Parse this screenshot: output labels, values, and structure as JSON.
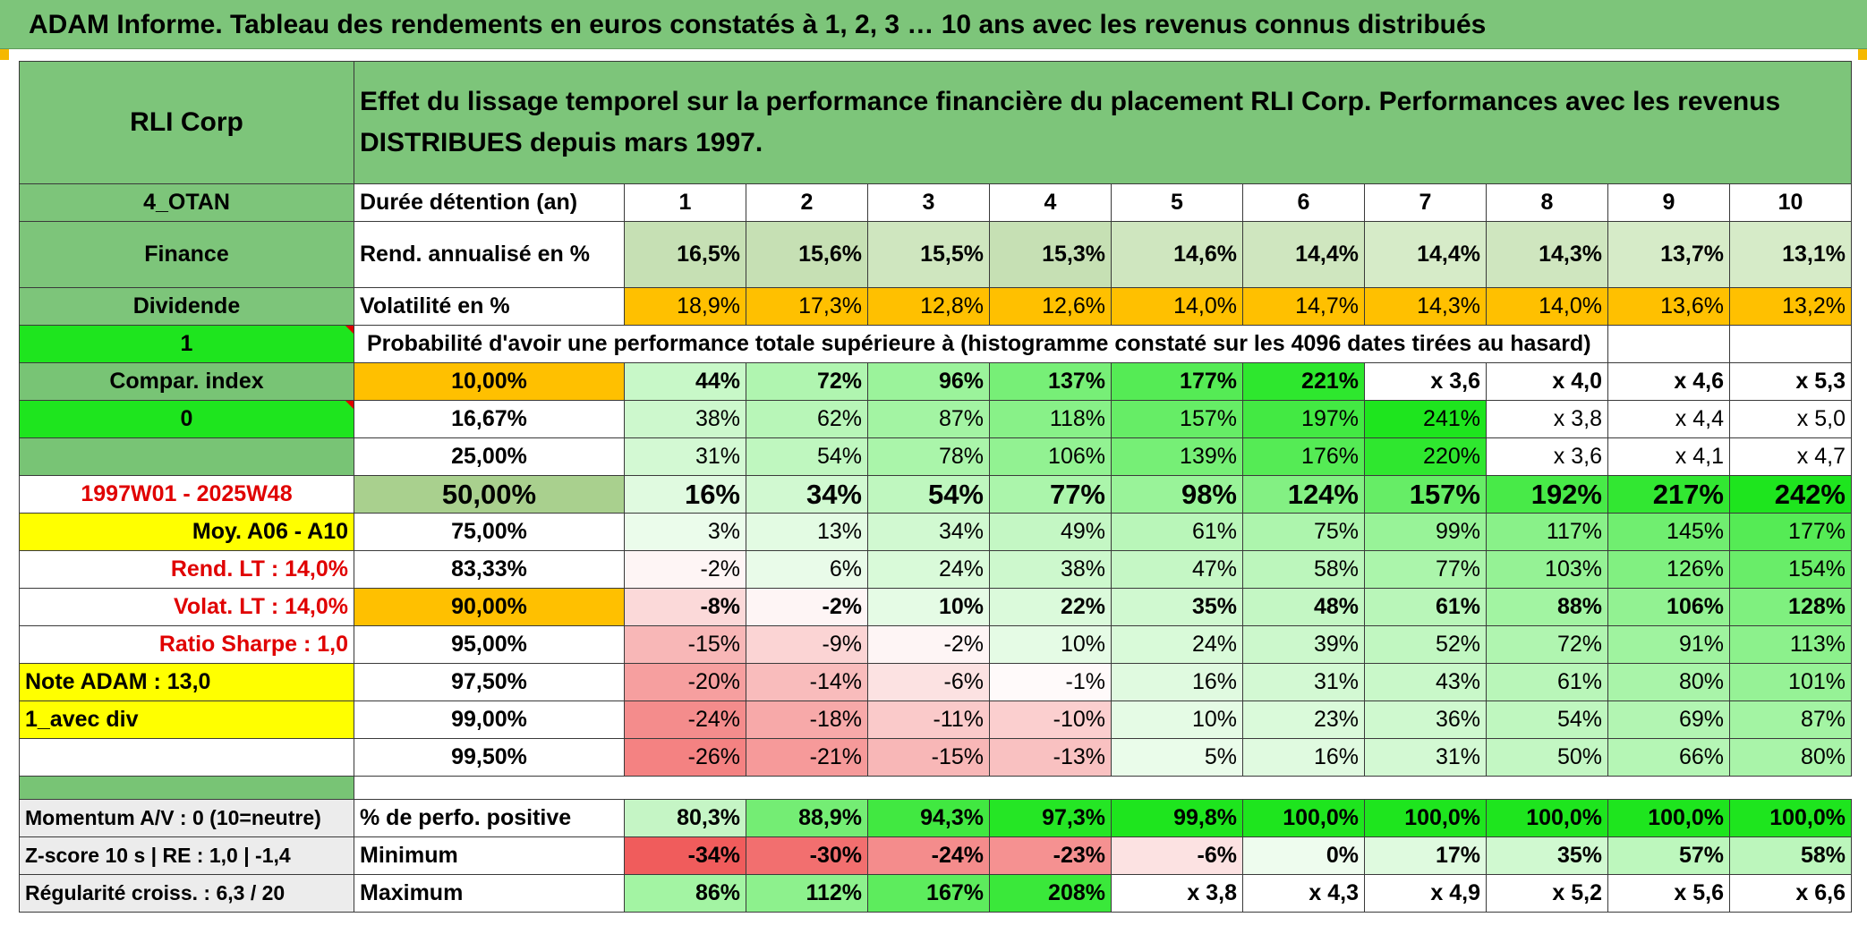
{
  "title": "ADAM Informe. Tableau des rendements en euros constatés à 1, 2, 3 … 10 ans avec les revenus connus distribués",
  "colors": {
    "header_green": "#7dc57a",
    "bright_green": "#1ee51e",
    "orange": "#ffc000",
    "yellow": "#ffff00",
    "red_text": "#e00000"
  },
  "header": {
    "name": "RLI Corp",
    "description": "Effet du lissage temporel sur la performance financière du placement RLI Corp. Performances avec les revenus DISTRIBUES depuis mars 1997."
  },
  "sidebar": {
    "code": "4_OTAN",
    "sector": "Finance",
    "type": "Dividende",
    "toggle_1": "1",
    "compar_index": "Compar. index",
    "toggle_0": "0",
    "empty": "",
    "period": "1997W01 - 2025W48",
    "moy": "Moy. A06 - A10",
    "rend_lt": "Rend. LT :   14,0%",
    "volat_lt": "Volat. LT :   14,0%",
    "sharpe": "Ratio Sharpe :    1,0",
    "note": "Note ADAM : 13,0",
    "div": "1_avec div",
    "blank": ""
  },
  "durations": {
    "label": "Durée détention (an)",
    "values": [
      "1",
      "2",
      "3",
      "4",
      "5",
      "6",
      "7",
      "8",
      "9",
      "10"
    ]
  },
  "rend": {
    "label": "Rend. annualisé en %",
    "values": [
      "16,5%",
      "15,6%",
      "15,5%",
      "15,3%",
      "14,6%",
      "14,4%",
      "14,4%",
      "14,3%",
      "13,7%",
      "13,1%"
    ]
  },
  "vol": {
    "label": "Volatilité en %",
    "values": [
      "18,9%",
      "17,3%",
      "12,8%",
      "12,6%",
      "14,0%",
      "14,7%",
      "14,3%",
      "14,0%",
      "13,6%",
      "13,2%"
    ]
  },
  "proba_title": "Probabilité d'avoir une performance totale supérieure à (histogramme constaté sur les 4096 dates tirées au hasard)",
  "prob_rows": [
    {
      "pct": "10,00%",
      "values": [
        "44%",
        "72%",
        "96%",
        "137%",
        "177%",
        "221%",
        "x 3,6",
        "x 4,0",
        "x 4,6",
        "x 5,3"
      ]
    },
    {
      "pct": "16,67%",
      "values": [
        "38%",
        "62%",
        "87%",
        "118%",
        "157%",
        "197%",
        "241%",
        "x 3,8",
        "x 4,4",
        "x 5,0"
      ]
    },
    {
      "pct": "25,00%",
      "values": [
        "31%",
        "54%",
        "78%",
        "106%",
        "139%",
        "176%",
        "220%",
        "x 3,6",
        "x 4,1",
        "x 4,7"
      ]
    },
    {
      "pct": "50,00%",
      "values": [
        "16%",
        "34%",
        "54%",
        "77%",
        "98%",
        "124%",
        "157%",
        "192%",
        "217%",
        "242%"
      ]
    },
    {
      "pct": "75,00%",
      "values": [
        "3%",
        "13%",
        "34%",
        "49%",
        "61%",
        "75%",
        "99%",
        "117%",
        "145%",
        "177%"
      ]
    },
    {
      "pct": "83,33%",
      "values": [
        "-2%",
        "6%",
        "24%",
        "38%",
        "47%",
        "58%",
        "77%",
        "103%",
        "126%",
        "154%"
      ]
    },
    {
      "pct": "90,00%",
      "values": [
        "-8%",
        "-2%",
        "10%",
        "22%",
        "35%",
        "48%",
        "61%",
        "88%",
        "106%",
        "128%"
      ]
    },
    {
      "pct": "95,00%",
      "values": [
        "-15%",
        "-9%",
        "-2%",
        "10%",
        "24%",
        "39%",
        "52%",
        "72%",
        "91%",
        "113%"
      ]
    },
    {
      "pct": "97,50%",
      "values": [
        "-20%",
        "-14%",
        "-6%",
        "-1%",
        "16%",
        "31%",
        "43%",
        "61%",
        "80%",
        "101%"
      ]
    },
    {
      "pct": "99,00%",
      "values": [
        "-24%",
        "-18%",
        "-11%",
        "-10%",
        "10%",
        "23%",
        "36%",
        "54%",
        "69%",
        "87%"
      ]
    },
    {
      "pct": "99,50%",
      "values": [
        "-26%",
        "-21%",
        "-15%",
        "-13%",
        "5%",
        "16%",
        "31%",
        "50%",
        "66%",
        "80%"
      ]
    }
  ],
  "stats": [
    {
      "side": "Momentum A/V : 0 (10=neutre)",
      "label": "% de perfo. positive",
      "values": [
        "80,3%",
        "88,9%",
        "94,3%",
        "97,3%",
        "99,8%",
        "100,0%",
        "100,0%",
        "100,0%",
        "100,0%",
        "100,0%"
      ]
    },
    {
      "side": "Z-score 10 s | RE : 1,0 | -1,4",
      "label": "Minimum",
      "values": [
        "-34%",
        "-30%",
        "-24%",
        "-23%",
        "-6%",
        "0%",
        "17%",
        "35%",
        "57%",
        "58%"
      ]
    },
    {
      "side": "Régularité croiss. : 6,3 / 20",
      "label": "Maximum",
      "values": [
        "86%",
        "112%",
        "167%",
        "208%",
        "x 3,8",
        "x 4,3",
        "x 4,9",
        "x 5,2",
        "x 5,6",
        "x 6,6"
      ]
    }
  ]
}
